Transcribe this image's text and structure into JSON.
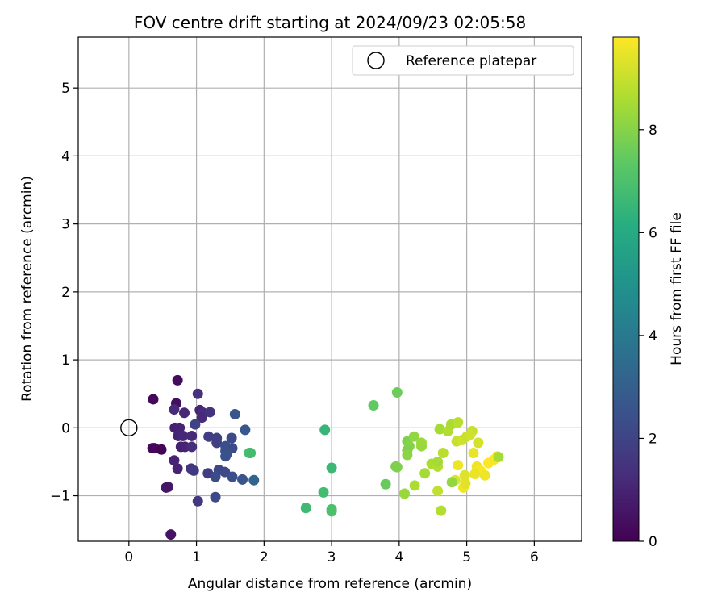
{
  "chart_data": {
    "type": "scatter",
    "title": "FOV centre drift starting at 2024/09/23 02:05:58",
    "xlabel": "Angular distance from reference (arcmin)",
    "ylabel": "Rotation from reference (arcmin)",
    "xlim": [
      -0.75,
      6.7
    ],
    "ylim": [
      -1.67,
      5.75
    ],
    "xticks": [
      0,
      1,
      2,
      3,
      4,
      5,
      6
    ],
    "yticks": [
      -1,
      0,
      1,
      2,
      3,
      4,
      5
    ],
    "grid": true,
    "legend": {
      "position": "top-right",
      "entries": [
        "Reference platepar"
      ]
    },
    "reference_point": {
      "x": 0,
      "y": 0
    },
    "colorbar": {
      "label": "Hours from first FF file",
      "colormap": "viridis",
      "range": [
        0,
        9.8
      ],
      "ticks": [
        0,
        2,
        4,
        6,
        8
      ]
    },
    "points": [
      {
        "x": 0.72,
        "y": 0.7,
        "c": 0.3
      },
      {
        "x": 1.02,
        "y": 0.5,
        "c": 1.4
      },
      {
        "x": 0.36,
        "y": 0.42,
        "c": 0.2
      },
      {
        "x": 0.7,
        "y": 0.36,
        "c": 0.4
      },
      {
        "x": 0.67,
        "y": 0.27,
        "c": 1.2
      },
      {
        "x": 0.82,
        "y": 0.22,
        "c": 1.1
      },
      {
        "x": 1.05,
        "y": 0.26,
        "c": 1.0
      },
      {
        "x": 1.1,
        "y": 0.22,
        "c": 1.3
      },
      {
        "x": 1.2,
        "y": 0.23,
        "c": 1.5
      },
      {
        "x": 1.08,
        "y": 0.15,
        "c": 1.2
      },
      {
        "x": 1.57,
        "y": 0.2,
        "c": 2.6
      },
      {
        "x": 0.98,
        "y": 0.05,
        "c": 2.0
      },
      {
        "x": 0.68,
        "y": 0.0,
        "c": 0.9
      },
      {
        "x": 0.75,
        "y": 0.0,
        "c": 1.0
      },
      {
        "x": 1.72,
        "y": -0.03,
        "c": 2.7
      },
      {
        "x": 0.73,
        "y": -0.12,
        "c": 1.0
      },
      {
        "x": 0.8,
        "y": -0.12,
        "c": 1.1
      },
      {
        "x": 0.93,
        "y": -0.12,
        "c": 1.2
      },
      {
        "x": 1.18,
        "y": -0.13,
        "c": 1.8
      },
      {
        "x": 1.3,
        "y": -0.15,
        "c": 1.9
      },
      {
        "x": 1.52,
        "y": -0.15,
        "c": 2.2
      },
      {
        "x": 1.3,
        "y": -0.22,
        "c": 1.9
      },
      {
        "x": 1.43,
        "y": -0.27,
        "c": 2.4
      },
      {
        "x": 0.77,
        "y": -0.28,
        "c": 0.9
      },
      {
        "x": 0.83,
        "y": -0.28,
        "c": 1.0
      },
      {
        "x": 0.93,
        "y": -0.28,
        "c": 1.3
      },
      {
        "x": 1.53,
        "y": -0.3,
        "c": 2.3
      },
      {
        "x": 0.35,
        "y": -0.3,
        "c": 0.2
      },
      {
        "x": 0.38,
        "y": -0.3,
        "c": 0.2
      },
      {
        "x": 0.48,
        "y": -0.32,
        "c": 0.1
      },
      {
        "x": 1.43,
        "y": -0.34,
        "c": 2.4
      },
      {
        "x": 1.45,
        "y": -0.38,
        "c": 2.5
      },
      {
        "x": 1.43,
        "y": -0.42,
        "c": 2.5
      },
      {
        "x": 1.78,
        "y": -0.37,
        "c": 6.9
      },
      {
        "x": 1.8,
        "y": -0.37,
        "c": 6.8
      },
      {
        "x": 0.67,
        "y": -0.48,
        "c": 1.0
      },
      {
        "x": 0.72,
        "y": -0.6,
        "c": 1.0
      },
      {
        "x": 0.92,
        "y": -0.6,
        "c": 1.5
      },
      {
        "x": 0.96,
        "y": -0.63,
        "c": 1.7
      },
      {
        "x": 1.17,
        "y": -0.67,
        "c": 1.8
      },
      {
        "x": 1.33,
        "y": -0.62,
        "c": 2.1
      },
      {
        "x": 1.42,
        "y": -0.65,
        "c": 2.2
      },
      {
        "x": 1.28,
        "y": -0.72,
        "c": 2.3
      },
      {
        "x": 1.53,
        "y": -0.72,
        "c": 2.4
      },
      {
        "x": 1.68,
        "y": -0.76,
        "c": 2.6
      },
      {
        "x": 1.85,
        "y": -0.77,
        "c": 3.2
      },
      {
        "x": 0.58,
        "y": -0.87,
        "c": 0.7
      },
      {
        "x": 0.55,
        "y": -0.88,
        "c": 0.6
      },
      {
        "x": 1.28,
        "y": -1.02,
        "c": 2.2
      },
      {
        "x": 1.02,
        "y": -1.08,
        "c": 1.6
      },
      {
        "x": 0.62,
        "y": -1.57,
        "c": 0.5
      },
      {
        "x": 2.9,
        "y": -0.03,
        "c": 6.5
      },
      {
        "x": 3.0,
        "y": -0.59,
        "c": 6.6
      },
      {
        "x": 2.88,
        "y": -0.95,
        "c": 6.8
      },
      {
        "x": 2.62,
        "y": -1.18,
        "c": 6.7
      },
      {
        "x": 3.0,
        "y": -1.2,
        "c": 6.9
      },
      {
        "x": 3.0,
        "y": -1.23,
        "c": 7.0
      },
      {
        "x": 3.62,
        "y": 0.33,
        "c": 7.4
      },
      {
        "x": 3.97,
        "y": 0.52,
        "c": 7.6
      },
      {
        "x": 4.12,
        "y": -0.2,
        "c": 7.9
      },
      {
        "x": 4.15,
        "y": -0.27,
        "c": 8.0
      },
      {
        "x": 4.12,
        "y": -0.33,
        "c": 7.9
      },
      {
        "x": 4.12,
        "y": -0.4,
        "c": 8.1
      },
      {
        "x": 4.22,
        "y": -0.13,
        "c": 8.2
      },
      {
        "x": 4.33,
        "y": -0.22,
        "c": 8.4
      },
      {
        "x": 4.33,
        "y": -0.27,
        "c": 8.3
      },
      {
        "x": 3.95,
        "y": -0.57,
        "c": 7.8
      },
      {
        "x": 3.97,
        "y": -0.58,
        "c": 7.9
      },
      {
        "x": 3.8,
        "y": -0.83,
        "c": 7.5
      },
      {
        "x": 4.08,
        "y": -0.97,
        "c": 8.3
      },
      {
        "x": 4.23,
        "y": -0.85,
        "c": 8.6
      },
      {
        "x": 4.38,
        "y": -0.67,
        "c": 8.5
      },
      {
        "x": 4.48,
        "y": -0.53,
        "c": 8.6
      },
      {
        "x": 4.57,
        "y": -0.57,
        "c": 8.7
      },
      {
        "x": 4.57,
        "y": -0.5,
        "c": 8.5
      },
      {
        "x": 4.65,
        "y": -0.37,
        "c": 8.8
      },
      {
        "x": 4.57,
        "y": -0.93,
        "c": 8.9
      },
      {
        "x": 4.62,
        "y": -1.22,
        "c": 8.7
      },
      {
        "x": 4.6,
        "y": -0.02,
        "c": 8.5
      },
      {
        "x": 4.72,
        "y": -0.05,
        "c": 8.7
      },
      {
        "x": 4.77,
        "y": 0.05,
        "c": 8.6
      },
      {
        "x": 4.87,
        "y": 0.08,
        "c": 8.8
      },
      {
        "x": 4.85,
        "y": -0.2,
        "c": 9.0
      },
      {
        "x": 4.93,
        "y": -0.18,
        "c": 9.1
      },
      {
        "x": 5.0,
        "y": -0.13,
        "c": 9.0
      },
      {
        "x": 5.08,
        "y": -0.05,
        "c": 9.0
      },
      {
        "x": 5.05,
        "y": -0.1,
        "c": 9.1
      },
      {
        "x": 5.17,
        "y": -0.22,
        "c": 9.2
      },
      {
        "x": 4.87,
        "y": -0.55,
        "c": 9.6
      },
      {
        "x": 4.83,
        "y": -0.77,
        "c": 9.3
      },
      {
        "x": 4.78,
        "y": -0.8,
        "c": 8.2
      },
      {
        "x": 4.97,
        "y": -0.7,
        "c": 9.3
      },
      {
        "x": 4.95,
        "y": -0.88,
        "c": 9.6
      },
      {
        "x": 4.98,
        "y": -0.82,
        "c": 9.4
      },
      {
        "x": 5.1,
        "y": -0.37,
        "c": 9.5
      },
      {
        "x": 5.15,
        "y": -0.57,
        "c": 9.6
      },
      {
        "x": 5.2,
        "y": -0.63,
        "c": 9.7
      },
      {
        "x": 5.12,
        "y": -0.68,
        "c": 9.5
      },
      {
        "x": 5.27,
        "y": -0.7,
        "c": 9.6
      },
      {
        "x": 5.32,
        "y": -0.52,
        "c": 9.8
      },
      {
        "x": 5.4,
        "y": -0.47,
        "c": 9.7
      },
      {
        "x": 5.45,
        "y": -0.42,
        "c": 9.8
      },
      {
        "x": 5.47,
        "y": -0.43,
        "c": 8.5
      }
    ]
  }
}
